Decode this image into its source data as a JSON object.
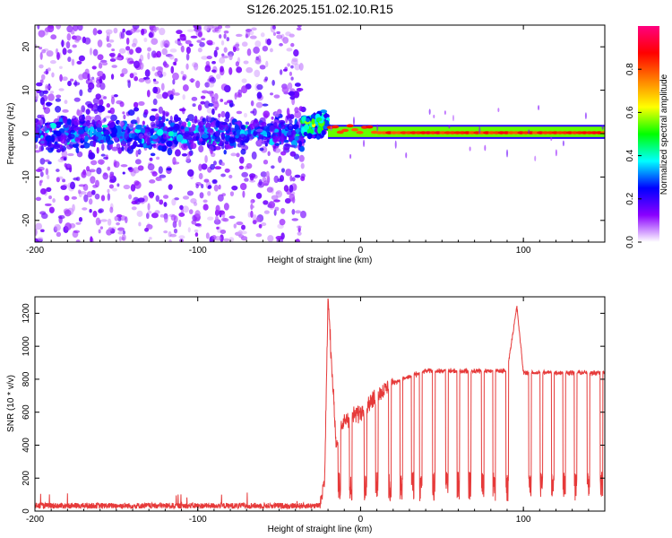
{
  "title": "S126.2025.151.02.10.R15",
  "chart_data": [
    {
      "type": "heatmap",
      "xlabel": "Height of straight line (km)",
      "ylabel": "Frequency (Hz)",
      "xlim": [
        -200,
        150
      ],
      "ylim": [
        -25,
        25
      ],
      "xticks": [
        -200,
        -100,
        0,
        100
      ],
      "yticks": [
        -20,
        -10,
        0,
        10,
        20
      ],
      "colorbar": {
        "label": "Normalized spectral amplitude",
        "range": [
          0,
          1
        ],
        "ticks": [
          0.0,
          0.2,
          0.4,
          0.6,
          0.8
        ],
        "tick_labels": [
          "0.0",
          "0.2",
          "0.4",
          "0.6",
          "0.8"
        ],
        "colors": [
          "#ffffff",
          "#8a00ff",
          "#0000ff",
          "#00ffff",
          "#00ff00",
          "#ffff00",
          "#ff8000",
          "#ff0000",
          "#ff0080"
        ]
      },
      "regions": [
        {
          "x_range": [
            -200,
            -35
          ],
          "description_level": "noise",
          "peak_amplitude": 0.3,
          "freq_spread": 25
        },
        {
          "x_range": [
            -35,
            -20
          ],
          "description_level": "transition",
          "peak_amplitude": 0.55,
          "freq_spread": 4
        },
        {
          "x_range": [
            -20,
            150
          ],
          "description_level": "carrier",
          "peak_amplitude": 0.9,
          "freq_spread": 1
        }
      ]
    },
    {
      "type": "line",
      "xlabel": "Height of straight line (km)",
      "ylabel": "SNR (10 * v/v)",
      "xlim": [
        -200,
        150
      ],
      "ylim": [
        0,
        1300
      ],
      "xticks": [
        -200,
        -100,
        0,
        100
      ],
      "yticks": [
        0,
        200,
        400,
        600,
        800,
        1000,
        1200
      ],
      "color": "#e63a3a",
      "grid": false,
      "key_points": [
        {
          "x": -200,
          "y": 30
        },
        {
          "x": -25,
          "y": 40
        },
        {
          "x": -22,
          "y": 200
        },
        {
          "x": -20,
          "y": 1300
        },
        {
          "x": -15,
          "y": 400
        },
        {
          "x": -10,
          "y": 550
        },
        {
          "x": 0,
          "y": 600
        },
        {
          "x": 10,
          "y": 700
        },
        {
          "x": 20,
          "y": 780
        },
        {
          "x": 40,
          "y": 850
        },
        {
          "x": 90,
          "y": 850
        },
        {
          "x": 96,
          "y": 1240
        },
        {
          "x": 100,
          "y": 840
        },
        {
          "x": 150,
          "y": 840
        }
      ],
      "dropouts_x": [
        -13,
        -6,
        3,
        10,
        18,
        25,
        32,
        37,
        45,
        53,
        60,
        67,
        75,
        82,
        90,
        104,
        111,
        118,
        125,
        132,
        140,
        148
      ]
    }
  ]
}
